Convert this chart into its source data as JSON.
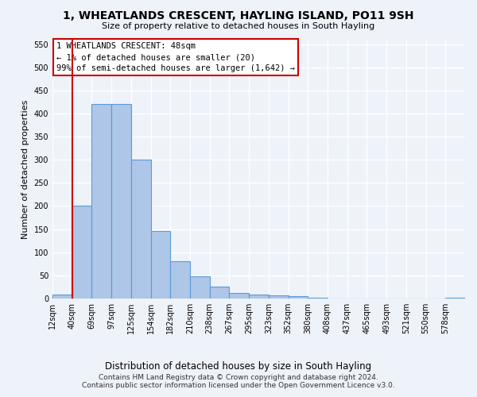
{
  "title": "1, WHEATLANDS CRESCENT, HAYLING ISLAND, PO11 9SH",
  "subtitle": "Size of property relative to detached houses in South Hayling",
  "xlabel": "Distribution of detached houses by size in South Hayling",
  "ylabel": "Number of detached properties",
  "bar_color": "#aec6e8",
  "bar_edge_color": "#5b9bd5",
  "vline_color": "#cc0000",
  "vline_x_index": 1.0,
  "categories": [
    "12sqm",
    "40sqm",
    "69sqm",
    "97sqm",
    "125sqm",
    "154sqm",
    "182sqm",
    "210sqm",
    "238sqm",
    "267sqm",
    "295sqm",
    "323sqm",
    "352sqm",
    "380sqm",
    "408sqm",
    "437sqm",
    "465sqm",
    "493sqm",
    "521sqm",
    "550sqm",
    "578sqm"
  ],
  "values": [
    8,
    200,
    420,
    420,
    300,
    145,
    80,
    48,
    25,
    12,
    8,
    6,
    5,
    2,
    0,
    0,
    0,
    0,
    0,
    0,
    2
  ],
  "ylim": [
    0,
    560
  ],
  "yticks": [
    0,
    50,
    100,
    150,
    200,
    250,
    300,
    350,
    400,
    450,
    500,
    550
  ],
  "annotation_text": "1 WHEATLANDS CRESCENT: 48sqm\n← 1% of detached houses are smaller (20)\n99% of semi-detached houses are larger (1,642) →",
  "annotation_box_color": "#ffffff",
  "annotation_border_color": "#cc0000",
  "footer_line1": "Contains HM Land Registry data © Crown copyright and database right 2024.",
  "footer_line2": "Contains public sector information licensed under the Open Government Licence v3.0.",
  "background_color": "#eef2f9",
  "grid_color": "#ffffff"
}
